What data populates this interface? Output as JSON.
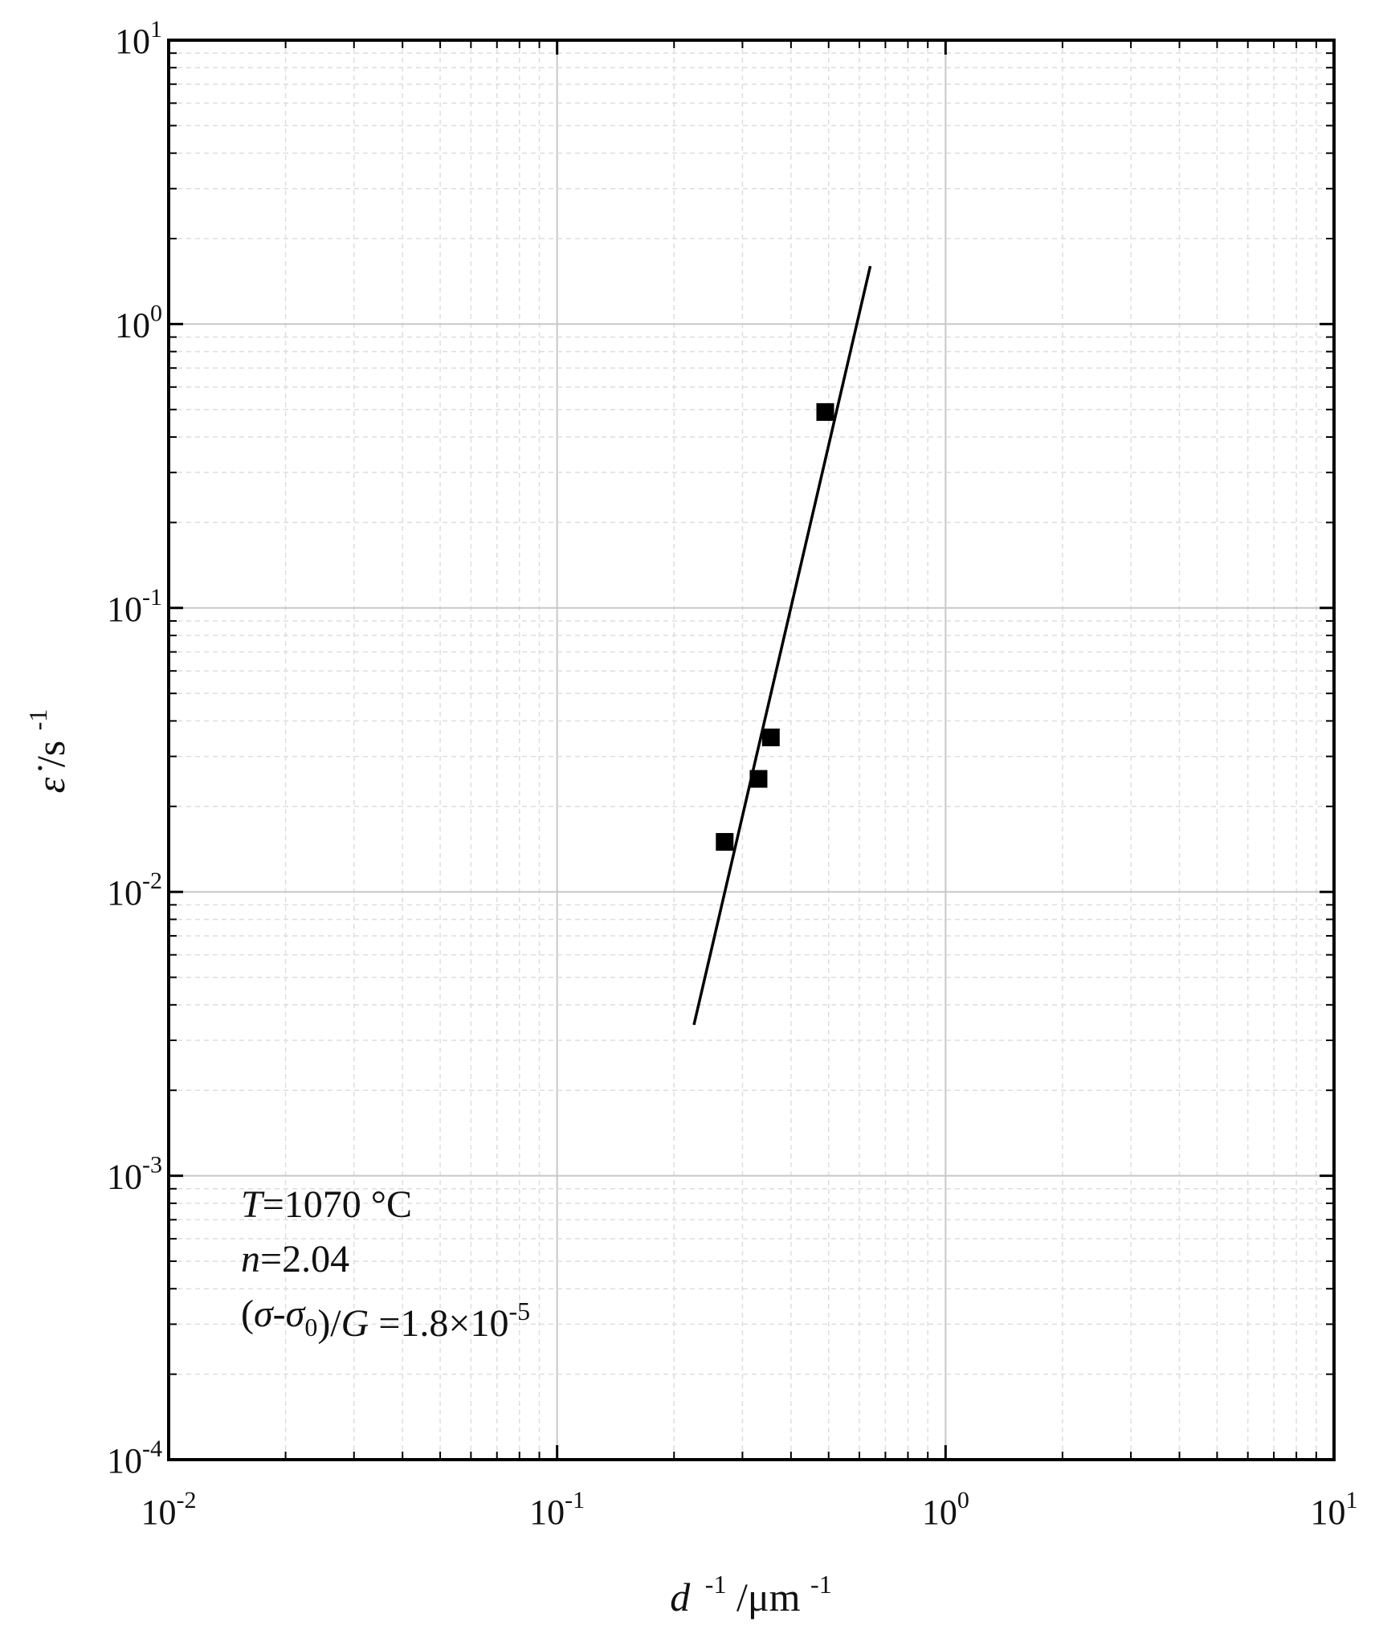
{
  "chart_data": {
    "type": "scatter",
    "x_scale": "log",
    "y_scale": "log",
    "xlim": [
      0.01,
      10
    ],
    "ylim": [
      0.0001,
      10
    ],
    "grid": true,
    "x_ticks": [
      {
        "base": "10",
        "exp": "-2"
      },
      {
        "base": "10",
        "exp": "-1"
      },
      {
        "base": "10",
        "exp": "0"
      },
      {
        "base": "10",
        "exp": "1"
      }
    ],
    "y_ticks": [
      {
        "base": "10",
        "exp": "-4"
      },
      {
        "base": "10",
        "exp": "-3"
      },
      {
        "base": "10",
        "exp": "-2"
      },
      {
        "base": "10",
        "exp": "-1"
      },
      {
        "base": "10",
        "exp": "0"
      },
      {
        "base": "10",
        "exp": "1"
      }
    ],
    "xlabel": {
      "var": "d",
      "exp1": "-1",
      "unit": "/μm",
      "exp2": "-1"
    },
    "ylabel": {
      "var": "ε̇",
      "unit": "/s",
      "exp": "-1"
    },
    "series": [
      {
        "type": "scatter",
        "marker": "square",
        "color": "#000000",
        "points": [
          {
            "x": 0.27,
            "y": 0.015
          },
          {
            "x": 0.33,
            "y": 0.025
          },
          {
            "x": 0.355,
            "y": 0.035
          },
          {
            "x": 0.49,
            "y": 0.49
          }
        ]
      },
      {
        "type": "line",
        "color": "#000000",
        "points": [
          {
            "x": 0.225,
            "y": 0.0034
          },
          {
            "x": 0.64,
            "y": 1.6
          }
        ]
      }
    ],
    "annotations": [
      {
        "parts": [
          {
            "t": "T",
            "style": "italic"
          },
          {
            "t": "=1070 °C"
          }
        ]
      },
      {
        "parts": [
          {
            "t": "n",
            "style": "italic"
          },
          {
            "t": "=2.04"
          }
        ]
      },
      {
        "parts": [
          {
            "t": "(",
            "style": "normal"
          },
          {
            "t": "σ",
            "style": "italic"
          },
          {
            "t": "-",
            "style": "normal"
          },
          {
            "t": "σ",
            "style": "italic"
          },
          {
            "t": "0",
            "style": "sub"
          },
          {
            "t": ")/",
            "style": "normal"
          },
          {
            "t": "G",
            "style": "italic"
          },
          {
            "t": " =1.8×10",
            "style": "normal"
          },
          {
            "t": "-5",
            "style": "sup"
          }
        ]
      }
    ]
  }
}
